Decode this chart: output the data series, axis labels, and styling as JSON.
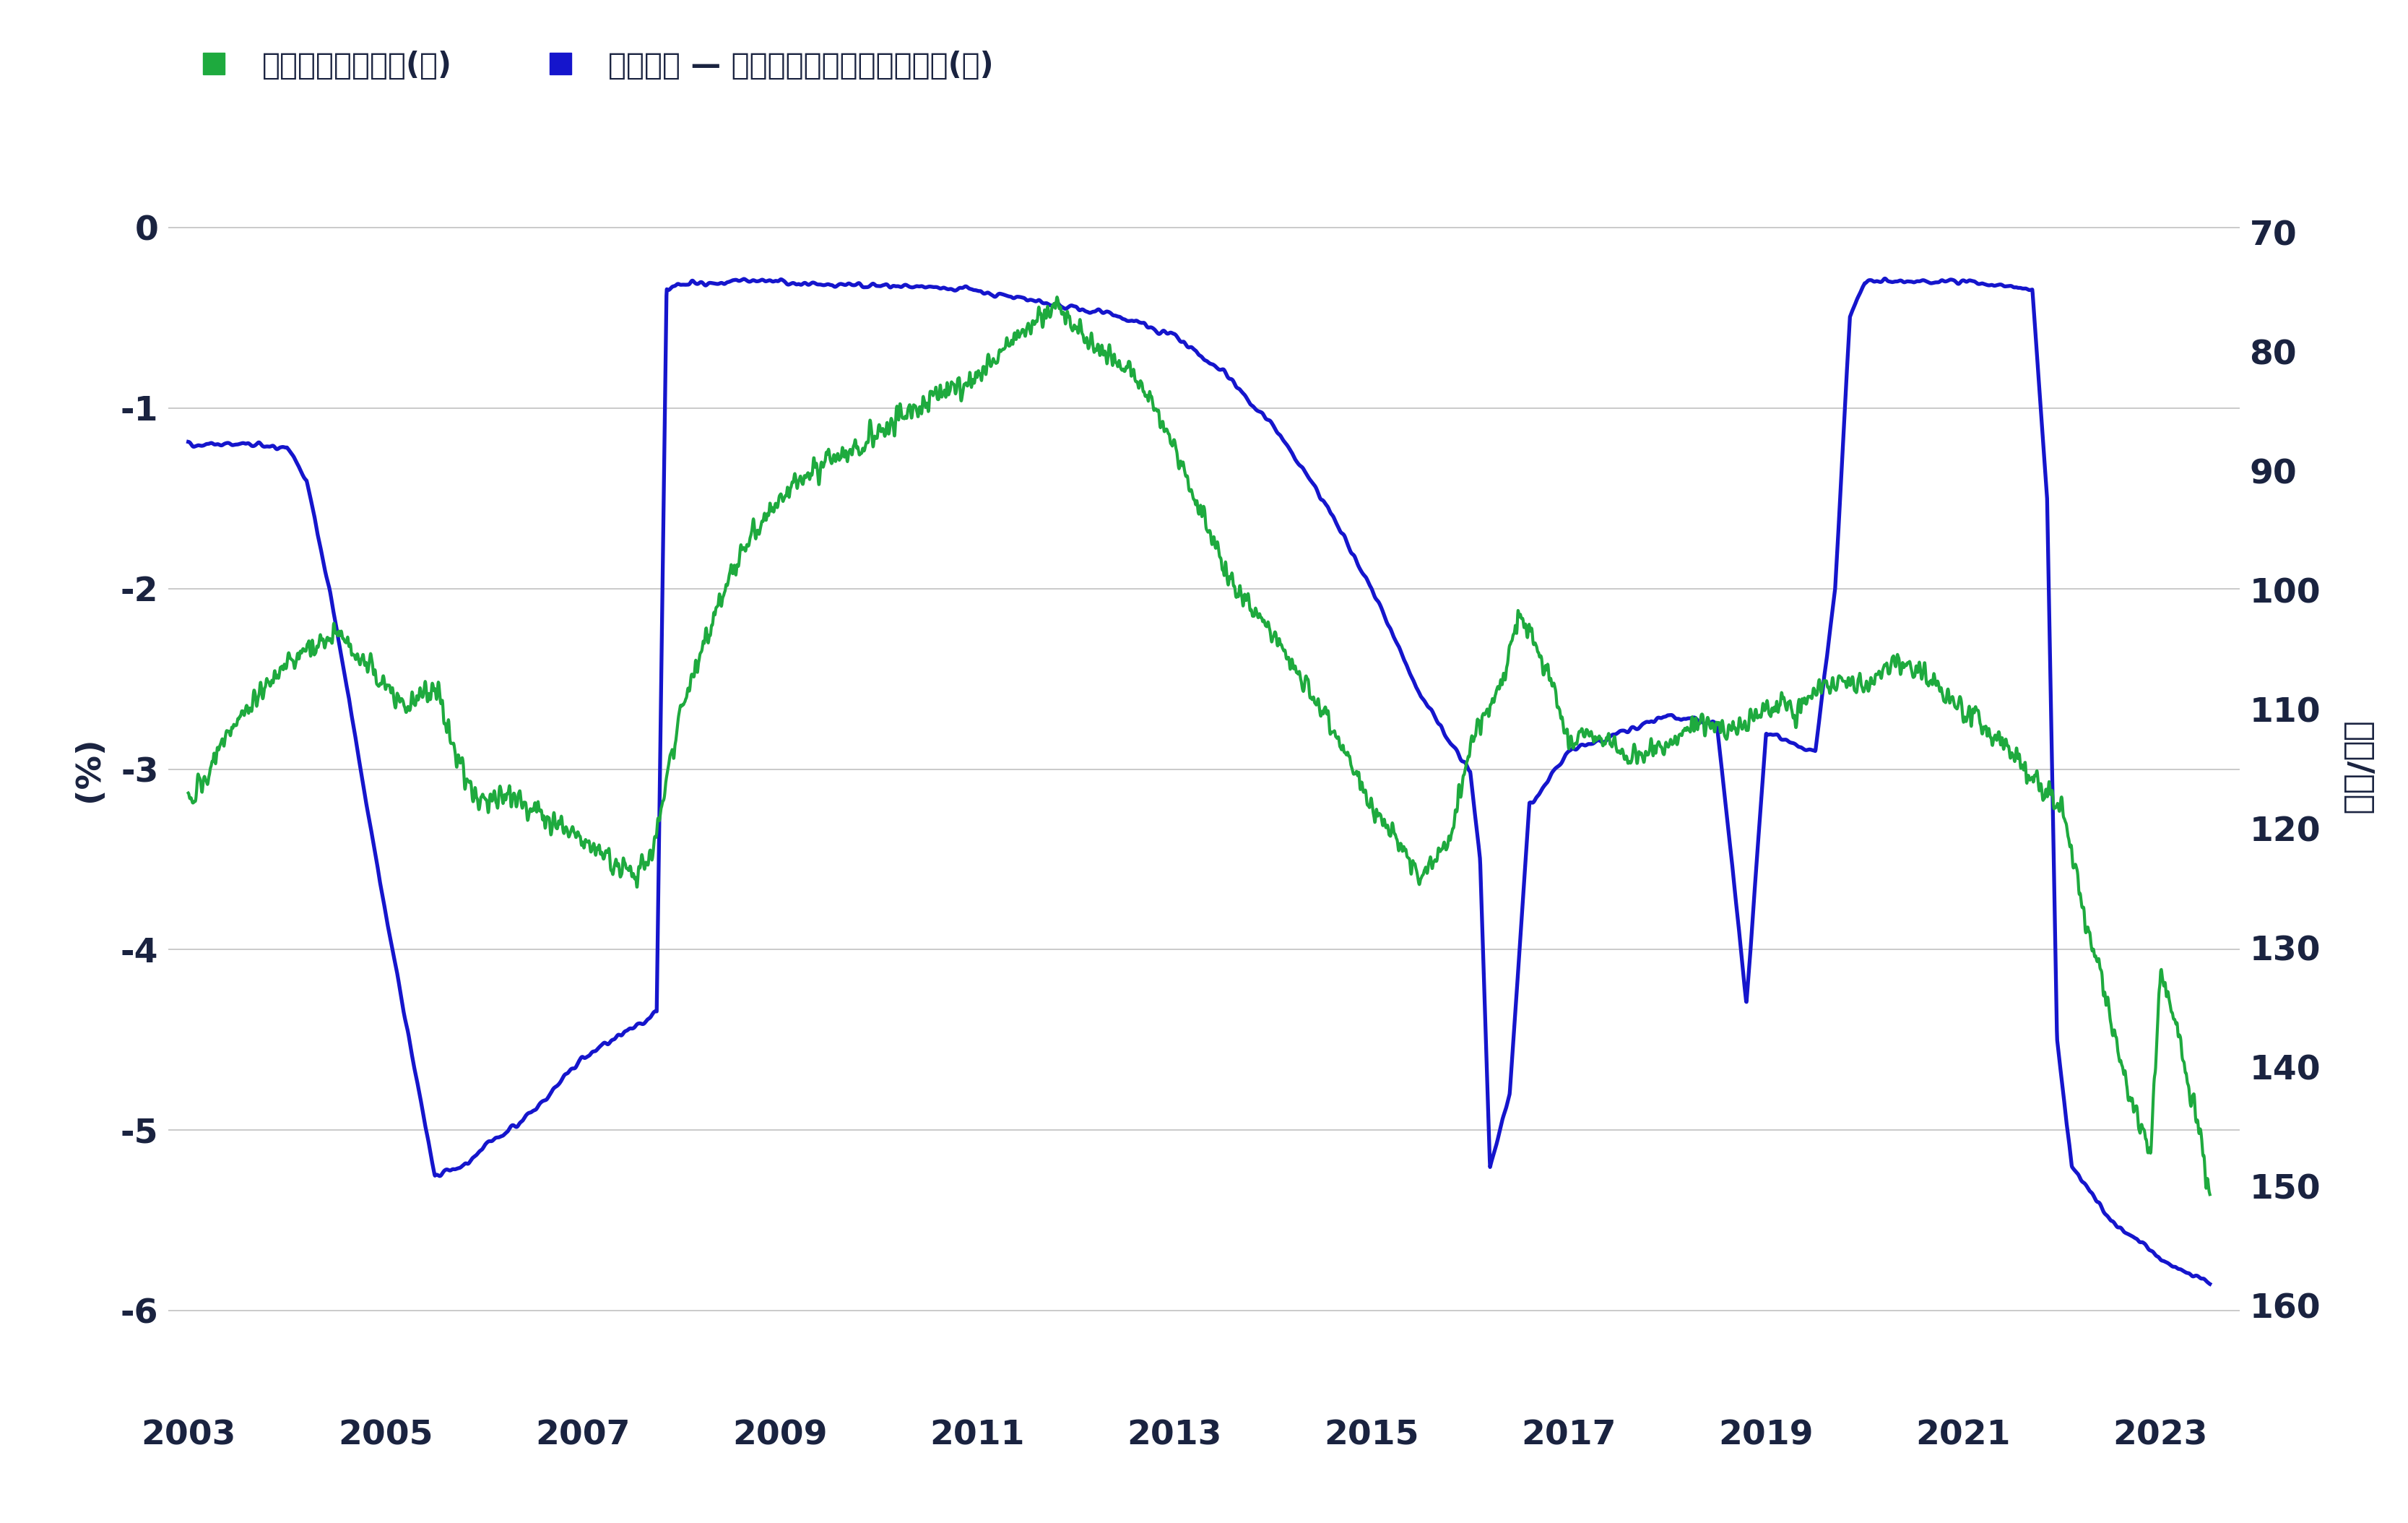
{
  "legend_green": "美元兆日圓，反向(右)",
  "legend_blue": "匯率差距 — 已對沖收益減去未對沖收益(左)",
  "left_ylabel": "(%)",
  "right_ylabel": "美元/日圓",
  "left_yticks": [
    0,
    -1,
    -2,
    -3,
    -4,
    -5,
    -6
  ],
  "right_yticks": [
    70,
    80,
    90,
    100,
    110,
    120,
    130,
    140,
    150,
    160
  ],
  "xticks": [
    2003,
    2005,
    2007,
    2009,
    2011,
    2013,
    2015,
    2017,
    2019,
    2021,
    2023
  ],
  "xlim": [
    2002.8,
    2023.8
  ],
  "green_color": "#1eaa3e",
  "blue_color": "#1515cc",
  "text_color": "#1a2340",
  "grid_color": "#bbbbbb",
  "background": "#ffffff"
}
